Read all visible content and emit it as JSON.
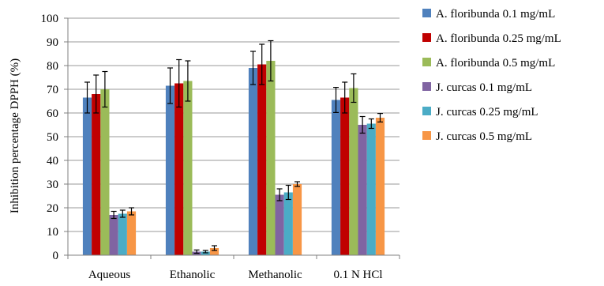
{
  "chart_data": {
    "type": "bar",
    "title": "",
    "xlabel": "",
    "ylabel": "Inhibition percentage DPPH (%)",
    "ylim": [
      0,
      100
    ],
    "yticks": [
      0,
      10,
      20,
      30,
      40,
      50,
      60,
      70,
      80,
      90,
      100
    ],
    "grid": true,
    "legend_position": "right",
    "categories": [
      "Aqueous",
      "Ethanolic",
      "Methanolic",
      "0.1 N HCl"
    ],
    "series": [
      {
        "name": "A. floribunda 0.1 mg/mL",
        "color": "#4f81bd",
        "values": [
          66.5,
          71.5,
          79,
          65.5
        ],
        "errors": [
          6.5,
          7.5,
          7,
          5.3
        ]
      },
      {
        "name": "A. floribunda 0.25 mg/mL",
        "color": "#c00000",
        "values": [
          68,
          72.5,
          80.5,
          66.5
        ],
        "errors": [
          8,
          10,
          8.5,
          6.5
        ]
      },
      {
        "name": "A. floribunda 0.5 mg/mL",
        "color": "#9bbb59",
        "values": [
          70,
          73.5,
          82,
          70.5
        ],
        "errors": [
          7.5,
          8.5,
          8.5,
          6
        ]
      },
      {
        "name": "J. curcas 0.1 mg/mL",
        "color": "#8064a2",
        "values": [
          17,
          1.5,
          25.5,
          55
        ],
        "errors": [
          1.5,
          0.7,
          2.5,
          3.5
        ]
      },
      {
        "name": "J. curcas 0.25 mg/mL",
        "color": "#4bacc6",
        "values": [
          17.5,
          1.5,
          26.5,
          55.5
        ],
        "errors": [
          1.5,
          0.5,
          3,
          2
        ]
      },
      {
        "name": "J. curcas 0.5 mg/mL",
        "color": "#f79646",
        "values": [
          18.5,
          3,
          30,
          58
        ],
        "errors": [
          1.5,
          1,
          1,
          1.8
        ]
      }
    ]
  }
}
